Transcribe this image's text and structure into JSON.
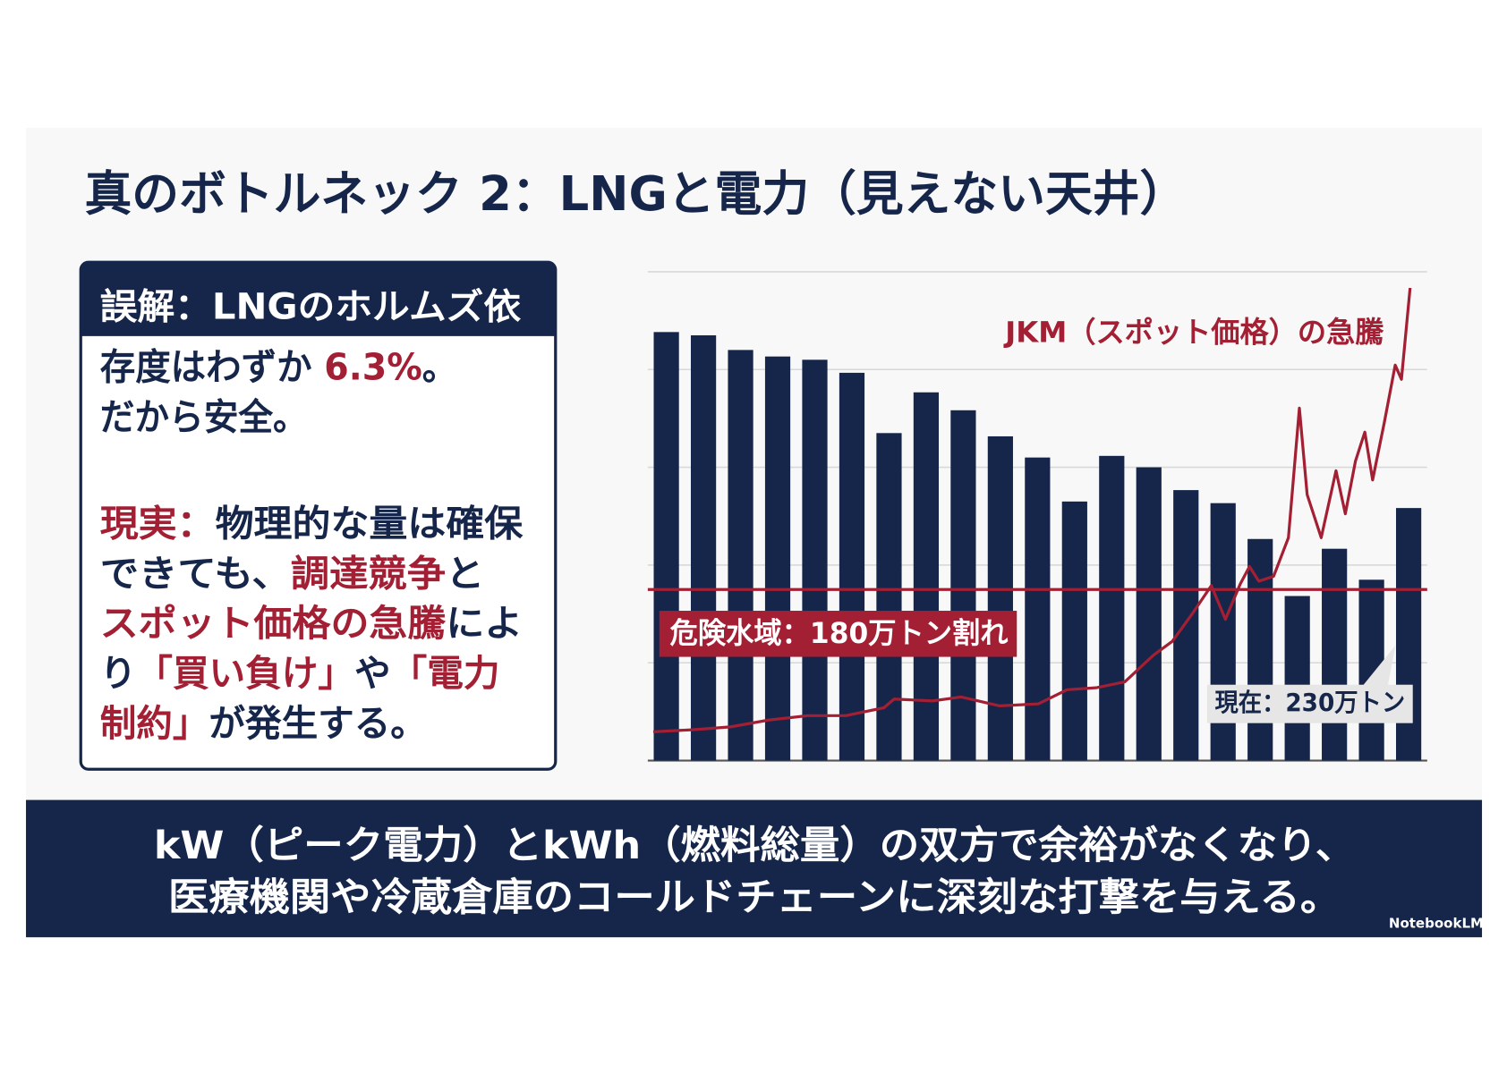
{
  "slide": {
    "title": "真のボトルネック 2：LNGと電力（見えない天井）",
    "misconception_heading": "誤解：LNGのホルムズ依",
    "misconception_lines": [
      [
        {
          "text": "存度はわずか "
        },
        {
          "text": "6.3%",
          "color": "#a31f34"
        },
        {
          "text": "。"
        }
      ],
      [
        {
          "text": "だから安全。"
        }
      ]
    ],
    "reality_lines": [
      [
        {
          "text": "現実：",
          "color": "#a31f34"
        },
        {
          "text": "物理的な量は確保"
        }
      ],
      [
        {
          "text": "できても、"
        },
        {
          "text": "調達競争",
          "color": "#a31f34"
        },
        {
          "text": "と"
        }
      ],
      [
        {
          "text": "スポット価格の急騰",
          "color": "#a31f34"
        },
        {
          "text": "によ"
        }
      ],
      [
        {
          "text": "り"
        },
        {
          "text": "「買い負け」",
          "color": "#a31f34"
        },
        {
          "text": "や"
        },
        {
          "text": "「電力",
          "color": "#a31f34"
        }
      ],
      [
        {
          "text": "制約」",
          "color": "#a31f34"
        },
        {
          "text": "が発生する。"
        }
      ]
    ],
    "footer_lines": [
      "kW（ピーク電力）とkWh（燃料総量）の双方で余裕がなくなり、",
      "医療機関や冷蔵倉庫のコールドチェーンに深刻な打撃を与える。"
    ],
    "brand": "NotebookLM"
  },
  "chart_data": {
    "type": "bar",
    "categories": [
      null,
      null,
      null,
      null,
      null,
      null,
      null,
      null,
      null,
      null,
      null,
      null,
      null,
      null,
      null,
      null,
      null,
      null,
      null,
      null,
      null
    ],
    "ylim": [
      75,
      375
    ],
    "yticks": [
      75,
      135,
      195,
      255,
      315,
      375
    ],
    "grid": true,
    "xlim": [
      0,
      100
    ],
    "y2lim": [
      0,
      100
    ],
    "series": [
      {
        "type": "bar",
        "color": "#15264a",
        "values": [
          338,
          336,
          327,
          323,
          321,
          313,
          276,
          301,
          290,
          274,
          261,
          234,
          262,
          255,
          241,
          233,
          211,
          176,
          205,
          186,
          230
        ]
      },
      {
        "type": "line",
        "name": "JKM（スポット価格）の急騰",
        "color": "#a31f34",
        "axis": "y2",
        "x": [
          0.7,
          5.7,
          10.6,
          15.5,
          20.5,
          25.4,
          30.3,
          31.6,
          36.5,
          40.2,
          45.1,
          50.1,
          53.8,
          57.5,
          61.2,
          64.9,
          67.3,
          69.8,
          72.3,
          74.1,
          76.0,
          77.2,
          78.4,
          80.3,
          82.2,
          83.6,
          84.6,
          86.4,
          88.3,
          89.5,
          90.8,
          92.0,
          93.0,
          94.5,
          95.9,
          96.7,
          97.8
        ],
        "values": [
          5.9,
          6.3,
          6.9,
          8.3,
          9.2,
          9.2,
          10.8,
          12.6,
          12.2,
          13.0,
          11.2,
          11.6,
          14.5,
          14.9,
          16.1,
          21.6,
          24.4,
          29.9,
          35.8,
          28.9,
          36.1,
          39.7,
          36.7,
          37.7,
          45.6,
          72.1,
          54.4,
          45.6,
          59.3,
          50.5,
          61.3,
          67.2,
          57.4,
          69.2,
          80.9,
          78.0,
          96.7
        ]
      }
    ],
    "threshold": {
      "value": 180,
      "label": "危険水域：180万トン割れ",
      "color": "#a31f34"
    },
    "current_label": "現在：230万トン"
  }
}
